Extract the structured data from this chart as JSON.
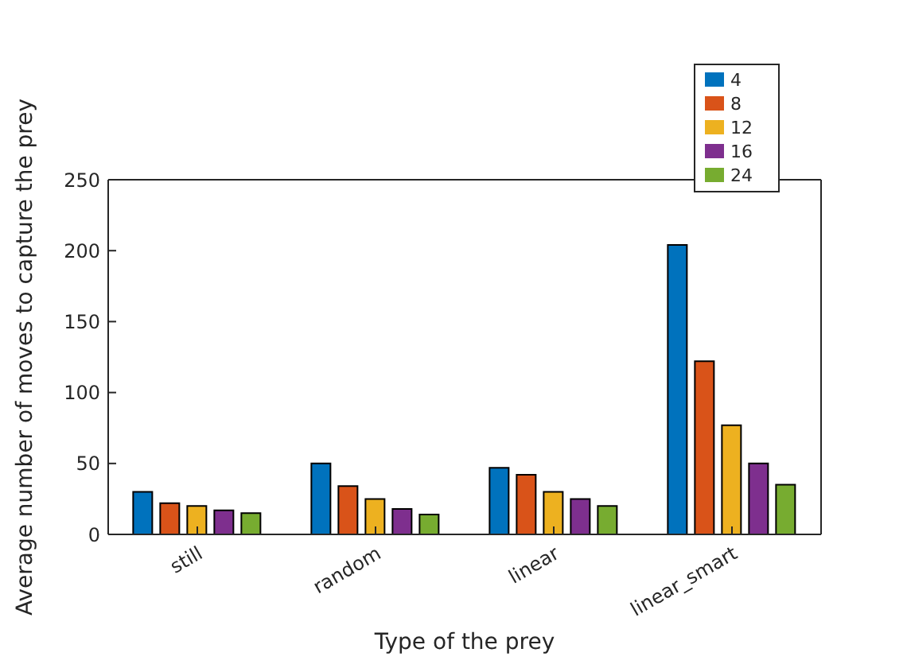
{
  "chart_data": {
    "type": "bar",
    "xlabel": "Type of the prey",
    "ylabel": "Average number of moves to capture the prey",
    "categories": [
      "still",
      "random",
      "linear",
      "linear_smart"
    ],
    "series": [
      {
        "name": "4",
        "color": "#0072bd",
        "values": [
          30,
          50,
          47,
          204
        ]
      },
      {
        "name": "8",
        "color": "#d95319",
        "values": [
          22,
          34,
          42,
          122
        ]
      },
      {
        "name": "12",
        "color": "#edb120",
        "values": [
          20,
          25,
          30,
          77
        ]
      },
      {
        "name": "16",
        "color": "#7e2f8e",
        "values": [
          17,
          18,
          25,
          50
        ]
      },
      {
        "name": "24",
        "color": "#77ac30",
        "values": [
          15,
          14,
          20,
          35
        ]
      }
    ],
    "ylim": [
      0,
      250
    ],
    "yticks": [
      0,
      50,
      100,
      150,
      200,
      250
    ],
    "grid": false,
    "legend": "top right"
  }
}
